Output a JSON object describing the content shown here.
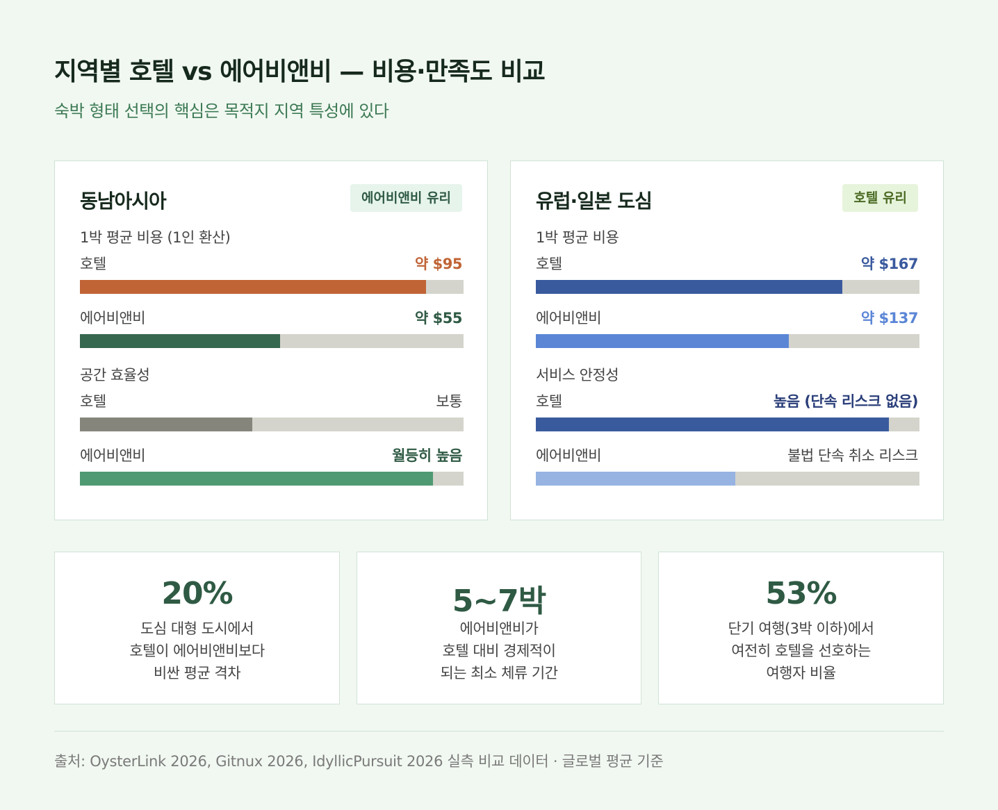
{
  "header": {
    "title": "지역별 호텔 vs 에어비앤비 — 비용·만족도 비교",
    "subtitle": "숙박 형태 선택의 핵심은 목적지 지역 특성에 있다"
  },
  "chart_data": [
    {
      "type": "bar",
      "title": "동남아시아",
      "badge": "에어비앤비 유리",
      "sections": [
        {
          "label": "1박 평균 비용 (1인 환산)",
          "rows": [
            {
              "name": "호텔",
              "value_label": "약 $95",
              "value": 95,
              "fill_fraction": 0.902,
              "color": "#c06436",
              "value_color": "#c06436",
              "bold": true
            },
            {
              "name": "에어비앤비",
              "value_label": "약 $55",
              "value": 55,
              "fill_fraction": 0.522,
              "color": "#36684f",
              "value_color": "#2f5a44",
              "bold": true
            }
          ]
        },
        {
          "label": "공간 효율성",
          "rows": [
            {
              "name": "호텔",
              "value_label": "보통",
              "fill_fraction": 0.449,
              "color": "#85857c",
              "value_color": "#444444",
              "bold": false
            },
            {
              "name": "에어비앤비",
              "value_label": "월등히 높음",
              "fill_fraction": 0.92,
              "color": "#4f9a72",
              "value_color": "#2f5a44",
              "bold": true
            }
          ]
        }
      ]
    },
    {
      "type": "bar",
      "title": "유럽·일본 도심",
      "badge": "호텔 유리",
      "sections": [
        {
          "label": "1박 평균 비용",
          "rows": [
            {
              "name": "호텔",
              "value_label": "약 $167",
              "value": 167,
              "fill_fraction": 0.799,
              "color": "#3a5a9e",
              "value_color": "#3a5a9e",
              "bold": true
            },
            {
              "name": "에어비앤비",
              "value_label": "약 $137",
              "value": 137,
              "fill_fraction": 0.659,
              "color": "#5b86d6",
              "value_color": "#5b86d6",
              "bold": true
            }
          ]
        },
        {
          "label": "서비스 안정성",
          "rows": [
            {
              "name": "호텔",
              "value_label": "높음 (단속 리스크 없음)",
              "fill_fraction": 0.92,
              "color": "#3a5a9e",
              "value_color": "#2b3f7a",
              "bold": true
            },
            {
              "name": "에어비앤비",
              "value_label": "불법 단속 취소 리스크",
              "fill_fraction": 0.52,
              "color": "#96b3e2",
              "value_color": "#444444",
              "bold": false
            }
          ]
        }
      ]
    }
  ],
  "stats": [
    {
      "value": "20%",
      "lines": [
        "도심 대형 도시에서",
        "호텔이 에어비앤비보다",
        "비싼 평균 격차"
      ]
    },
    {
      "value": "5~7박",
      "lines": [
        "에어비앤비가",
        "호텔 대비 경제적이",
        "되는 최소 체류 기간"
      ]
    },
    {
      "value": "53%",
      "lines": [
        "단기 여행(3박 이하)에서",
        "여전히 호텔을 선호하는",
        "여행자 비율"
      ]
    }
  ],
  "footer": {
    "source": "출처: OysterLink 2026, Gitnux 2026, IdyllicPursuit 2026 실측 비교 데이터 · 글로벌 평균 기준"
  },
  "colors": {
    "background": "#f1f8f1",
    "accent_green": "#2f5a44",
    "badge_green_bg": "#e6f4ec",
    "badge_olive_bg": "#e7f4dc",
    "track": "#d4d4cc"
  }
}
